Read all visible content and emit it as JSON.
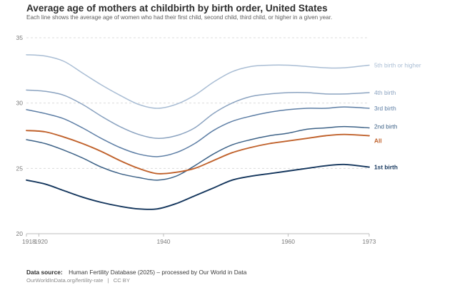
{
  "chart_data": {
    "type": "line",
    "title": "Average age of mothers at childbirth by birth order, United States",
    "subtitle": "Each line shows the average age of women who had their first child, second child, third child, or higher in a given year.",
    "xlim": [
      1918,
      1973
    ],
    "ylim": [
      20,
      35
    ],
    "x_ticks": [
      "1918",
      "1920",
      "1940",
      "1960",
      "1973"
    ],
    "y_ticks": [
      "20",
      "25",
      "30",
      "35"
    ],
    "grid": "horizontal dashed",
    "legend": "right end labels",
    "series": [
      {
        "name": "5th birth or higher",
        "color": "#a9bdd4",
        "x": [
          1918,
          1921,
          1924,
          1927,
          1930,
          1933,
          1936,
          1939,
          1942,
          1945,
          1948,
          1951,
          1954,
          1957,
          1960,
          1963,
          1966,
          1969,
          1973
        ],
        "y": [
          33.7,
          33.6,
          33.2,
          32.3,
          31.4,
          30.6,
          29.9,
          29.6,
          29.9,
          30.6,
          31.6,
          32.4,
          32.8,
          32.9,
          32.9,
          32.8,
          32.7,
          32.7,
          32.9
        ]
      },
      {
        "name": "4th birth",
        "color": "#8ba3c0",
        "x": [
          1918,
          1921,
          1924,
          1927,
          1930,
          1933,
          1936,
          1939,
          1942,
          1945,
          1948,
          1951,
          1954,
          1957,
          1960,
          1963,
          1966,
          1969,
          1973
        ],
        "y": [
          31.0,
          30.9,
          30.6,
          29.9,
          29.0,
          28.2,
          27.6,
          27.3,
          27.5,
          28.1,
          29.2,
          30.0,
          30.5,
          30.7,
          30.8,
          30.8,
          30.7,
          30.7,
          30.8
        ]
      },
      {
        "name": "3rd birth",
        "color": "#5d7ea5",
        "x": [
          1918,
          1921,
          1924,
          1927,
          1930,
          1933,
          1936,
          1939,
          1942,
          1945,
          1948,
          1951,
          1954,
          1957,
          1960,
          1963,
          1966,
          1969,
          1973
        ],
        "y": [
          29.5,
          29.2,
          28.8,
          28.1,
          27.3,
          26.6,
          26.1,
          25.9,
          26.2,
          26.9,
          27.9,
          28.6,
          29.0,
          29.3,
          29.5,
          29.6,
          29.6,
          29.7,
          29.6
        ]
      },
      {
        "name": "2nd birth",
        "color": "#3d6287",
        "x": [
          1918,
          1921,
          1924,
          1927,
          1930,
          1933,
          1936,
          1939,
          1942,
          1945,
          1948,
          1951,
          1954,
          1957,
          1960,
          1963,
          1966,
          1969,
          1973
        ],
        "y": [
          27.2,
          26.9,
          26.4,
          25.8,
          25.1,
          24.6,
          24.3,
          24.1,
          24.4,
          25.2,
          26.1,
          26.8,
          27.2,
          27.5,
          27.7,
          28.0,
          28.1,
          28.2,
          28.1
        ]
      },
      {
        "name": "All",
        "color": "#c0612b",
        "x": [
          1918,
          1921,
          1924,
          1927,
          1930,
          1933,
          1936,
          1939,
          1942,
          1945,
          1948,
          1951,
          1954,
          1957,
          1960,
          1963,
          1966,
          1969,
          1973
        ],
        "y": [
          27.9,
          27.8,
          27.4,
          26.9,
          26.3,
          25.6,
          25.0,
          24.6,
          24.7,
          25.0,
          25.6,
          26.2,
          26.6,
          26.9,
          27.1,
          27.3,
          27.5,
          27.6,
          27.5
        ]
      },
      {
        "name": "1st birth",
        "color": "#13355c",
        "x": [
          1918,
          1921,
          1924,
          1927,
          1930,
          1933,
          1936,
          1939,
          1942,
          1945,
          1948,
          1951,
          1954,
          1957,
          1960,
          1963,
          1966,
          1969,
          1973
        ],
        "y": [
          24.1,
          23.8,
          23.3,
          22.8,
          22.4,
          22.1,
          21.9,
          21.9,
          22.3,
          22.9,
          23.5,
          24.1,
          24.4,
          24.6,
          24.8,
          25.0,
          25.2,
          25.3,
          25.1
        ]
      }
    ]
  },
  "footer": {
    "source_label": "Data source:",
    "source_text": "Human Fertility Database (2025) – processed by Our World in Data",
    "url": "OurWorldInData.org/fertility-rate",
    "separator": "|",
    "license": "CC BY"
  }
}
